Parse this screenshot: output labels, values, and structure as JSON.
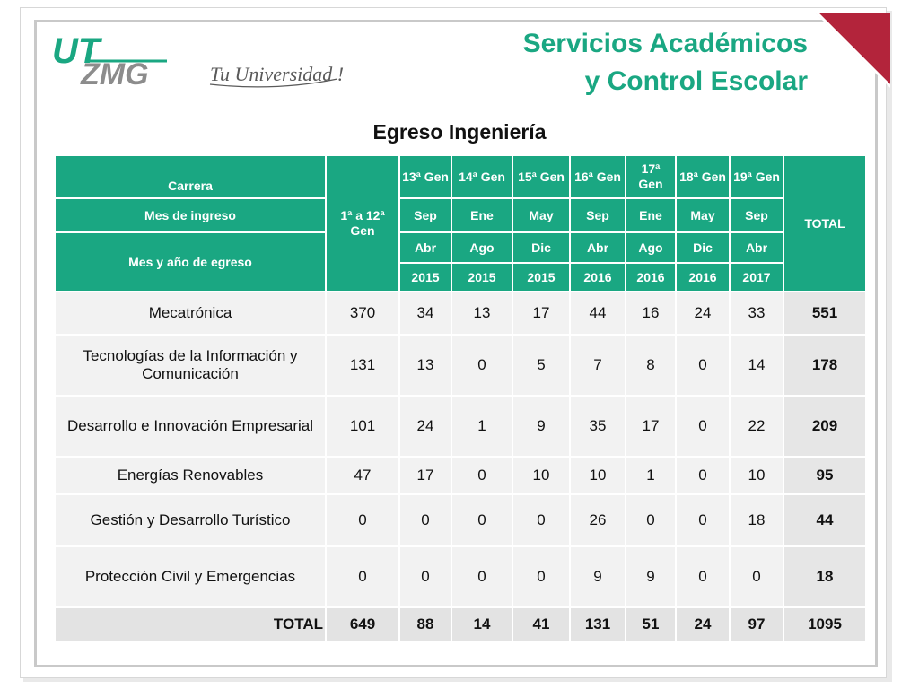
{
  "header": {
    "title_line1": "Servicios Académicos",
    "title_line2": "y Control Escolar",
    "logo_text": "UT ZMG",
    "slogan": "Tu Universidad !"
  },
  "subtitle": "Egreso Ingeniería",
  "colors": {
    "accent": "#1aa782",
    "corner": "#b3243b",
    "frame": "#c9c9c9"
  },
  "table": {
    "header": {
      "carrera": "Carrera",
      "mes_ingreso": "Mes de ingreso",
      "mes_egreso": "Mes y año de egreso",
      "first_gen": "1ª a 12ª Gen",
      "total": "TOTAL",
      "gens": [
        "13ª Gen",
        "14ª Gen",
        "15ª Gen",
        "16ª Gen",
        "17ª Gen",
        "18ª Gen",
        "19ª Gen"
      ],
      "ingreso": [
        "Sep",
        "Ene",
        "May",
        "Sep",
        "Ene",
        "May",
        "Sep"
      ],
      "egreso_mes": [
        "Abr",
        "Ago",
        "Dic",
        "Abr",
        "Ago",
        "Dic",
        "Abr"
      ],
      "egreso_anio": [
        "2015",
        "2015",
        "2015",
        "2016",
        "2016",
        "2016",
        "2017"
      ]
    },
    "rows": [
      {
        "name": "Mecatrónica",
        "values": [
          "370",
          "34",
          "13",
          "17",
          "44",
          "16",
          "24",
          "33"
        ],
        "total": "551"
      },
      {
        "name": "Tecnologías de la Información y Comunicación",
        "values": [
          "131",
          "13",
          "0",
          "5",
          "7",
          "8",
          "0",
          "14"
        ],
        "total": "178"
      },
      {
        "name": "Desarrollo e Innovación Empresarial",
        "values": [
          "101",
          "24",
          "1",
          "9",
          "35",
          "17",
          "0",
          "22"
        ],
        "total": "209"
      },
      {
        "name": "Energías Renovables",
        "values": [
          "47",
          "17",
          "0",
          "10",
          "10",
          "1",
          "0",
          "10"
        ],
        "total": "95"
      },
      {
        "name": "Gestión y Desarrollo Turístico",
        "values": [
          "0",
          "0",
          "0",
          "0",
          "26",
          "0",
          "0",
          "18"
        ],
        "total": "44"
      },
      {
        "name": "Protección Civil y Emergencias",
        "values": [
          "0",
          "0",
          "0",
          "0",
          "9",
          "9",
          "0",
          "0"
        ],
        "total": "18"
      }
    ],
    "totals": {
      "label": "TOTAL",
      "values": [
        "649",
        "88",
        "14",
        "41",
        "131",
        "51",
        "24",
        "97"
      ],
      "total": "1095"
    }
  }
}
